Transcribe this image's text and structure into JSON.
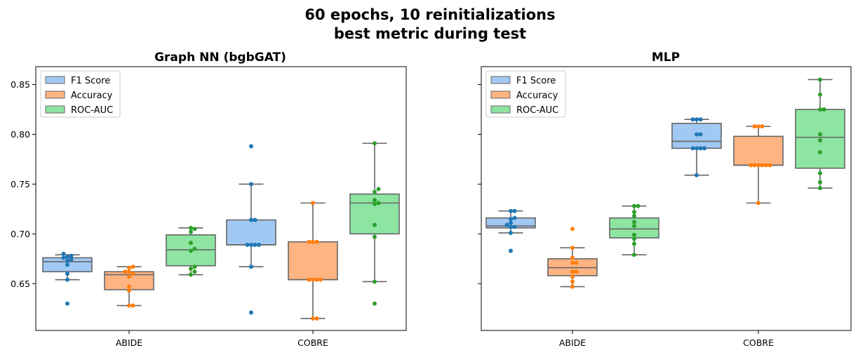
{
  "figure": {
    "title_line1": "60 epochs, 10 reinitializations",
    "title_line2": "best metric during test"
  },
  "colors": {
    "box": [
      "#a1c9f4",
      "#ffb482",
      "#8de5a1"
    ],
    "dots": [
      "#1f77b4",
      "#ff7f0e",
      "#2ca02c"
    ],
    "line": "#666666"
  },
  "chart_data": [
    {
      "type": "box",
      "title": "Graph NN (bgbGAT)",
      "xlabel": "",
      "ylabel": "",
      "categories": [
        "ABIDE",
        "COBRE"
      ],
      "ylim": [
        0.603,
        0.868
      ],
      "yticks": [
        "0.65",
        "0.70",
        "0.75",
        "0.80",
        "0.85"
      ],
      "legend_position": "top-left",
      "series": [
        {
          "name": "F1 Score",
          "stats": [
            {
              "whislo": 0.654,
              "q1": 0.662,
              "med": 0.672,
              "q3": 0.676,
              "whishi": 0.679,
              "points": [
                0.63,
                0.654,
                0.66,
                0.669,
                0.673,
                0.674,
                0.676,
                0.677,
                0.678,
                0.68
              ]
            },
            {
              "whislo": 0.667,
              "q1": 0.689,
              "med": 0.689,
              "q3": 0.714,
              "whishi": 0.75,
              "points": [
                0.621,
                0.667,
                0.689,
                0.689,
                0.689,
                0.689,
                0.714,
                0.714,
                0.75,
                0.788
              ]
            }
          ]
        },
        {
          "name": "Accuracy",
          "stats": [
            {
              "whislo": 0.628,
              "q1": 0.644,
              "med": 0.659,
              "q3": 0.662,
              "whishi": 0.667,
              "points": [
                0.628,
                0.628,
                0.643,
                0.647,
                0.657,
                0.66,
                0.662,
                0.662,
                0.666,
                0.667
              ]
            },
            {
              "whislo": 0.615,
              "q1": 0.654,
              "med": 0.654,
              "q3": 0.692,
              "whishi": 0.731,
              "points": [
                0.615,
                0.615,
                0.654,
                0.654,
                0.654,
                0.654,
                0.692,
                0.692,
                0.692,
                0.731
              ]
            }
          ]
        },
        {
          "name": "ROC-AUC",
          "stats": [
            {
              "whislo": 0.659,
              "q1": 0.668,
              "med": 0.684,
              "q3": 0.699,
              "whishi": 0.706,
              "points": [
                0.659,
                0.662,
                0.665,
                0.667,
                0.683,
                0.685,
                0.691,
                0.702,
                0.705,
                0.706
              ]
            },
            {
              "whislo": 0.652,
              "q1": 0.7,
              "med": 0.731,
              "q3": 0.74,
              "whishi": 0.791,
              "points": [
                0.63,
                0.652,
                0.697,
                0.709,
                0.73,
                0.731,
                0.734,
                0.742,
                0.745,
                0.791
              ]
            }
          ]
        }
      ]
    },
    {
      "type": "box",
      "title": "MLP",
      "xlabel": "",
      "ylabel": "",
      "categories": [
        "ABIDE",
        "COBRE"
      ],
      "ylim": [
        0.603,
        0.868
      ],
      "yticks": [],
      "legend_position": "top-left",
      "series": [
        {
          "name": "F1 Score",
          "stats": [
            {
              "whislo": 0.701,
              "q1": 0.706,
              "med": 0.708,
              "q3": 0.716,
              "whishi": 0.723,
              "points": [
                0.683,
                0.701,
                0.707,
                0.707,
                0.709,
                0.711,
                0.715,
                0.716,
                0.723,
                0.723
              ]
            },
            {
              "whislo": 0.759,
              "q1": 0.786,
              "med": 0.793,
              "q3": 0.811,
              "whishi": 0.815,
              "points": [
                0.759,
                0.786,
                0.786,
                0.786,
                0.786,
                0.8,
                0.8,
                0.815,
                0.815,
                0.815
              ]
            }
          ]
        },
        {
          "name": "Accuracy",
          "stats": [
            {
              "whislo": 0.647,
              "q1": 0.658,
              "med": 0.666,
              "q3": 0.675,
              "whishi": 0.686,
              "points": [
                0.647,
                0.652,
                0.657,
                0.662,
                0.662,
                0.671,
                0.671,
                0.676,
                0.686,
                0.705
              ]
            },
            {
              "whislo": 0.731,
              "q1": 0.769,
              "med": 0.769,
              "q3": 0.798,
              "whishi": 0.808,
              "points": [
                0.731,
                0.769,
                0.769,
                0.769,
                0.769,
                0.769,
                0.769,
                0.808,
                0.808,
                0.808
              ]
            }
          ]
        },
        {
          "name": "ROC-AUC",
          "stats": [
            {
              "whislo": 0.679,
              "q1": 0.696,
              "med": 0.705,
              "q3": 0.716,
              "whishi": 0.728,
              "points": [
                0.679,
                0.69,
                0.695,
                0.699,
                0.708,
                0.712,
                0.718,
                0.722,
                0.728,
                0.728
              ]
            },
            {
              "whislo": 0.746,
              "q1": 0.766,
              "med": 0.797,
              "q3": 0.825,
              "whishi": 0.855,
              "points": [
                0.746,
                0.752,
                0.761,
                0.782,
                0.794,
                0.8,
                0.825,
                0.825,
                0.84,
                0.855
              ]
            }
          ]
        }
      ]
    }
  ]
}
